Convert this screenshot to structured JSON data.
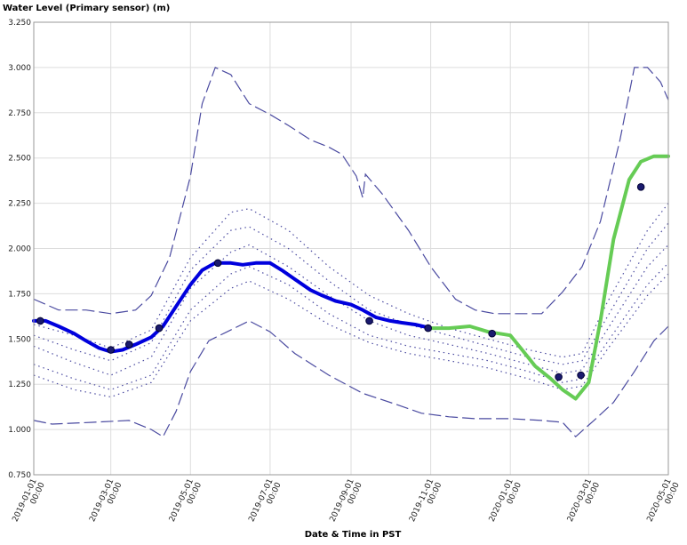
{
  "chart_data": {
    "type": "line",
    "title": "",
    "ylabel": "Water Level (Primary sensor) (m)",
    "xlabel": "Date & Time in PST",
    "ylim": [
      0.75,
      3.25
    ],
    "xlim": [
      "2019-01-01",
      "2020-05-01"
    ],
    "yticks": [
      "0.750",
      "1.000",
      "1.250",
      "1.500",
      "1.750",
      "2.000",
      "2.250",
      "2.500",
      "2.750",
      "3.000",
      "3.250"
    ],
    "xticks": [
      {
        "date": "2019-01-01",
        "l1": "2019-01-01",
        "l2": "00:00"
      },
      {
        "date": "2019-03-01",
        "l1": "2019-03-01",
        "l2": "00:00"
      },
      {
        "date": "2019-05-01",
        "l1": "2019-05-01",
        "l2": "00:00"
      },
      {
        "date": "2019-07-01",
        "l1": "2019-07-01",
        "l2": "00:00"
      },
      {
        "date": "2019-09-01",
        "l1": "2019-09-01",
        "l2": "00:00"
      },
      {
        "date": "2019-11-01",
        "l1": "2019-11-01",
        "l2": "00:00"
      },
      {
        "date": "2020-01-01",
        "l1": "2020-01-01",
        "l2": "00:00"
      },
      {
        "date": "2020-03-01",
        "l1": "2020-03-01",
        "l2": "00:00"
      },
      {
        "date": "2020-05-01",
        "l1": "2020-05-01",
        "l2": "00:00"
      }
    ],
    "grid": true,
    "colors": {
      "observed": "#0000dd",
      "recent": "#66cc55",
      "envelope": "#4a4aa0",
      "marker": "#1a1a6e"
    },
    "series": [
      {
        "name": "",
        "style": "solid-thick",
        "color": "#0000dd",
        "points": [
          [
            "2019-01-01",
            1.6
          ],
          [
            "2019-01-10",
            1.6
          ],
          [
            "2019-01-20",
            1.57
          ],
          [
            "2019-02-01",
            1.53
          ],
          [
            "2019-02-10",
            1.49
          ],
          [
            "2019-02-20",
            1.45
          ],
          [
            "2019-03-01",
            1.43
          ],
          [
            "2019-03-10",
            1.44
          ],
          [
            "2019-03-20",
            1.47
          ],
          [
            "2019-04-01",
            1.51
          ],
          [
            "2019-04-10",
            1.57
          ],
          [
            "2019-04-20",
            1.68
          ],
          [
            "2019-05-01",
            1.8
          ],
          [
            "2019-05-10",
            1.88
          ],
          [
            "2019-05-20",
            1.92
          ],
          [
            "2019-06-01",
            1.92
          ],
          [
            "2019-06-10",
            1.91
          ],
          [
            "2019-06-20",
            1.92
          ],
          [
            "2019-07-01",
            1.92
          ],
          [
            "2019-07-10",
            1.88
          ],
          [
            "2019-07-20",
            1.83
          ],
          [
            "2019-08-01",
            1.77
          ],
          [
            "2019-08-10",
            1.74
          ],
          [
            "2019-08-20",
            1.71
          ],
          [
            "2019-09-01",
            1.69
          ],
          [
            "2019-09-10",
            1.66
          ],
          [
            "2019-09-20",
            1.62
          ],
          [
            "2019-10-01",
            1.6
          ],
          [
            "2019-10-10",
            1.59
          ],
          [
            "2019-10-20",
            1.58
          ],
          [
            "2019-11-01",
            1.56
          ]
        ]
      },
      {
        "name": "",
        "style": "solid-thick",
        "color": "#66cc55",
        "points": [
          [
            "2019-11-01",
            1.56
          ],
          [
            "2019-11-15",
            1.56
          ],
          [
            "2019-12-01",
            1.57
          ],
          [
            "2019-12-15",
            1.54
          ],
          [
            "2020-01-01",
            1.52
          ],
          [
            "2020-01-10",
            1.44
          ],
          [
            "2020-01-20",
            1.35
          ],
          [
            "2020-02-01",
            1.28
          ],
          [
            "2020-02-10",
            1.22
          ],
          [
            "2020-02-20",
            1.17
          ],
          [
            "2020-03-01",
            1.26
          ],
          [
            "2020-03-10",
            1.6
          ],
          [
            "2020-03-20",
            2.05
          ],
          [
            "2020-04-01",
            2.38
          ],
          [
            "2020-04-10",
            2.48
          ],
          [
            "2020-04-20",
            2.51
          ],
          [
            "2020-05-01",
            2.51
          ]
        ]
      },
      {
        "name": "",
        "style": "dashed-long",
        "color": "#4a4aa0",
        "points": [
          [
            "2019-01-01",
            1.72
          ],
          [
            "2019-01-20",
            1.66
          ],
          [
            "2019-02-10",
            1.66
          ],
          [
            "2019-03-01",
            1.64
          ],
          [
            "2019-03-20",
            1.66
          ],
          [
            "2019-04-01",
            1.74
          ],
          [
            "2019-04-15",
            1.95
          ],
          [
            "2019-05-01",
            2.4
          ],
          [
            "2019-05-10",
            2.8
          ],
          [
            "2019-05-20",
            3.0
          ],
          [
            "2019-06-01",
            2.96
          ],
          [
            "2019-06-15",
            2.8
          ],
          [
            "2019-07-01",
            2.74
          ],
          [
            "2019-07-15",
            2.68
          ],
          [
            "2019-08-01",
            2.6
          ],
          [
            "2019-08-15",
            2.56
          ],
          [
            "2019-08-25",
            2.52
          ],
          [
            "2019-09-05",
            2.4
          ],
          [
            "2019-09-10",
            2.28
          ],
          [
            "2019-09-12",
            2.41
          ],
          [
            "2019-09-25",
            2.3
          ],
          [
            "2019-10-15",
            2.1
          ],
          [
            "2019-11-01",
            1.9
          ],
          [
            "2019-11-20",
            1.72
          ],
          [
            "2019-12-05",
            1.66
          ],
          [
            "2019-12-20",
            1.64
          ],
          [
            "2020-01-10",
            1.64
          ],
          [
            "2020-01-25",
            1.64
          ],
          [
            "2020-02-10",
            1.76
          ],
          [
            "2020-02-25",
            1.9
          ],
          [
            "2020-03-10",
            2.15
          ],
          [
            "2020-03-25",
            2.6
          ],
          [
            "2020-04-05",
            3.0
          ],
          [
            "2020-04-15",
            3.0
          ],
          [
            "2020-04-25",
            2.92
          ],
          [
            "2020-05-01",
            2.82
          ]
        ]
      },
      {
        "name": "",
        "style": "dashed-long",
        "color": "#4a4aa0",
        "points": [
          [
            "2019-01-01",
            1.05
          ],
          [
            "2019-01-15",
            1.03
          ],
          [
            "2019-02-15",
            1.04
          ],
          [
            "2019-03-15",
            1.05
          ],
          [
            "2019-04-01",
            1.0
          ],
          [
            "2019-04-10",
            0.96
          ],
          [
            "2019-04-20",
            1.1
          ],
          [
            "2019-05-01",
            1.32
          ],
          [
            "2019-05-15",
            1.49
          ],
          [
            "2019-06-01",
            1.55
          ],
          [
            "2019-06-15",
            1.6
          ],
          [
            "2019-07-01",
            1.54
          ],
          [
            "2019-07-20",
            1.42
          ],
          [
            "2019-08-15",
            1.3
          ],
          [
            "2019-09-10",
            1.2
          ],
          [
            "2019-10-05",
            1.14
          ],
          [
            "2019-10-25",
            1.09
          ],
          [
            "2019-11-15",
            1.07
          ],
          [
            "2019-12-05",
            1.06
          ],
          [
            "2020-01-01",
            1.06
          ],
          [
            "2020-01-25",
            1.05
          ],
          [
            "2020-02-10",
            1.04
          ],
          [
            "2020-02-20",
            0.96
          ],
          [
            "2020-03-05",
            1.05
          ],
          [
            "2020-03-20",
            1.15
          ],
          [
            "2020-04-05",
            1.32
          ],
          [
            "2020-04-20",
            1.49
          ],
          [
            "2020-05-01",
            1.57
          ]
        ]
      },
      {
        "name": "",
        "style": "dotted",
        "color": "#4a4aa0",
        "points": [
          [
            "2019-01-01",
            1.58
          ],
          [
            "2019-02-01",
            1.52
          ],
          [
            "2019-03-01",
            1.45
          ],
          [
            "2019-04-01",
            1.55
          ],
          [
            "2019-05-01",
            1.95
          ],
          [
            "2019-06-01",
            2.2
          ],
          [
            "2019-06-15",
            2.22
          ],
          [
            "2019-07-15",
            2.1
          ],
          [
            "2019-08-15",
            1.9
          ],
          [
            "2019-09-15",
            1.74
          ],
          [
            "2019-10-15",
            1.64
          ],
          [
            "2019-11-15",
            1.56
          ],
          [
            "2019-12-15",
            1.5
          ],
          [
            "2020-01-15",
            1.44
          ],
          [
            "2020-02-10",
            1.4
          ],
          [
            "2020-02-25",
            1.42
          ],
          [
            "2020-03-15",
            1.7
          ],
          [
            "2020-04-15",
            2.1
          ],
          [
            "2020-05-01",
            2.25
          ]
        ]
      },
      {
        "name": "",
        "style": "dotted",
        "color": "#4a4aa0",
        "points": [
          [
            "2019-01-01",
            1.52
          ],
          [
            "2019-02-01",
            1.44
          ],
          [
            "2019-03-01",
            1.38
          ],
          [
            "2019-04-01",
            1.48
          ],
          [
            "2019-05-01",
            1.88
          ],
          [
            "2019-06-01",
            2.1
          ],
          [
            "2019-06-15",
            2.12
          ],
          [
            "2019-07-15",
            2.0
          ],
          [
            "2019-08-15",
            1.82
          ],
          [
            "2019-09-15",
            1.66
          ],
          [
            "2019-10-15",
            1.58
          ],
          [
            "2019-11-15",
            1.52
          ],
          [
            "2019-12-15",
            1.46
          ],
          [
            "2020-01-15",
            1.4
          ],
          [
            "2020-02-10",
            1.36
          ],
          [
            "2020-02-25",
            1.38
          ],
          [
            "2020-03-15",
            1.62
          ],
          [
            "2020-04-15",
            2.0
          ],
          [
            "2020-05-01",
            2.14
          ]
        ]
      },
      {
        "name": "",
        "style": "dotted",
        "color": "#4a4aa0",
        "points": [
          [
            "2019-01-01",
            1.46
          ],
          [
            "2019-02-01",
            1.37
          ],
          [
            "2019-03-01",
            1.3
          ],
          [
            "2019-04-01",
            1.4
          ],
          [
            "2019-05-01",
            1.78
          ],
          [
            "2019-06-01",
            1.98
          ],
          [
            "2019-06-15",
            2.02
          ],
          [
            "2019-07-15",
            1.9
          ],
          [
            "2019-08-15",
            1.74
          ],
          [
            "2019-09-15",
            1.6
          ],
          [
            "2019-10-15",
            1.52
          ],
          [
            "2019-11-15",
            1.47
          ],
          [
            "2019-12-15",
            1.42
          ],
          [
            "2020-01-15",
            1.36
          ],
          [
            "2020-02-10",
            1.31
          ],
          [
            "2020-02-25",
            1.33
          ],
          [
            "2020-03-15",
            1.55
          ],
          [
            "2020-04-15",
            1.9
          ],
          [
            "2020-05-01",
            2.02
          ]
        ]
      },
      {
        "name": "",
        "style": "dotted",
        "color": "#4a4aa0",
        "points": [
          [
            "2019-01-01",
            1.36
          ],
          [
            "2019-02-01",
            1.28
          ],
          [
            "2019-03-01",
            1.22
          ],
          [
            "2019-04-01",
            1.3
          ],
          [
            "2019-05-01",
            1.66
          ],
          [
            "2019-06-01",
            1.86
          ],
          [
            "2019-06-15",
            1.9
          ],
          [
            "2019-07-15",
            1.8
          ],
          [
            "2019-08-15",
            1.64
          ],
          [
            "2019-09-15",
            1.52
          ],
          [
            "2019-10-15",
            1.46
          ],
          [
            "2019-11-15",
            1.42
          ],
          [
            "2019-12-15",
            1.38
          ],
          [
            "2020-01-15",
            1.32
          ],
          [
            "2020-02-10",
            1.26
          ],
          [
            "2020-02-25",
            1.28
          ],
          [
            "2020-03-15",
            1.48
          ],
          [
            "2020-04-15",
            1.8
          ],
          [
            "2020-05-01",
            1.92
          ]
        ]
      },
      {
        "name": "",
        "style": "dotted",
        "color": "#4a4aa0",
        "points": [
          [
            "2019-01-01",
            1.3
          ],
          [
            "2019-02-01",
            1.22
          ],
          [
            "2019-03-01",
            1.18
          ],
          [
            "2019-04-01",
            1.26
          ],
          [
            "2019-05-01",
            1.6
          ],
          [
            "2019-06-01",
            1.78
          ],
          [
            "2019-06-15",
            1.82
          ],
          [
            "2019-07-15",
            1.72
          ],
          [
            "2019-08-15",
            1.58
          ],
          [
            "2019-09-15",
            1.48
          ],
          [
            "2019-10-15",
            1.42
          ],
          [
            "2019-11-15",
            1.38
          ],
          [
            "2019-12-15",
            1.34
          ],
          [
            "2020-01-15",
            1.28
          ],
          [
            "2020-02-10",
            1.22
          ],
          [
            "2020-02-25",
            1.24
          ],
          [
            "2020-03-15",
            1.44
          ],
          [
            "2020-04-15",
            1.74
          ],
          [
            "2020-05-01",
            1.86
          ]
        ]
      }
    ],
    "markers": [
      [
        "2019-01-06",
        1.6
      ],
      [
        "2019-03-01",
        1.44
      ],
      [
        "2019-03-15",
        1.47
      ],
      [
        "2019-04-07",
        1.56
      ],
      [
        "2019-05-22",
        1.92
      ],
      [
        "2019-09-15",
        1.6
      ],
      [
        "2019-10-30",
        1.56
      ],
      [
        "2019-12-18",
        1.53
      ],
      [
        "2020-02-07",
        1.29
      ],
      [
        "2020-02-24",
        1.3
      ],
      [
        "2020-04-10",
        2.34
      ]
    ]
  }
}
